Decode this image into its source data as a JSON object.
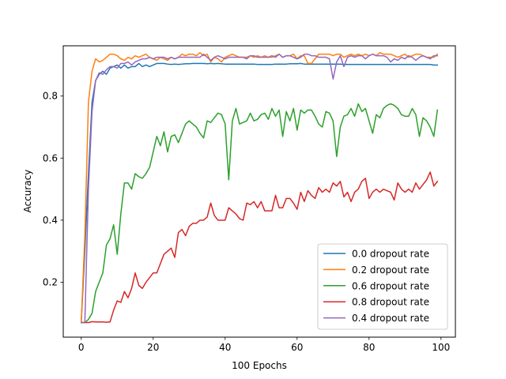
{
  "chart_data": {
    "type": "line",
    "title": "",
    "xlabel": "100 Epochs",
    "ylabel": "Accuracy",
    "xlim": [
      -5,
      104
    ],
    "ylim": [
      0.023,
      0.962
    ],
    "xticks": [
      0,
      20,
      40,
      60,
      80,
      100
    ],
    "yticks": [
      0.2,
      0.4,
      0.6,
      0.8
    ],
    "ytick_labels": [
      "0.2",
      "0.4",
      "0.6",
      "0.8"
    ],
    "grid": false,
    "legend": "lower-right",
    "series": [
      {
        "name": "0.0 dropout rate",
        "color": "#1f77b4",
        "values": [
          0.07,
          0.3,
          0.55,
          0.78,
          0.85,
          0.87,
          0.88,
          0.87,
          0.89,
          0.895,
          0.9,
          0.89,
          0.9,
          0.89,
          0.895,
          0.895,
          0.905,
          0.895,
          0.9,
          0.895,
          0.9,
          0.905,
          0.905,
          0.905,
          0.903,
          0.902,
          0.903,
          0.902,
          0.903,
          0.904,
          0.904,
          0.905,
          0.905,
          0.905,
          0.905,
          0.904,
          0.905,
          0.904,
          0.905,
          0.904,
          0.903,
          0.903,
          0.903,
          0.903,
          0.903,
          0.903,
          0.903,
          0.903,
          0.903,
          0.902,
          0.902,
          0.902,
          0.902,
          0.902,
          0.903,
          0.903,
          0.903,
          0.903,
          0.904,
          0.904,
          0.904,
          0.905,
          0.903,
          0.903,
          0.903,
          0.903,
          0.903,
          0.903,
          0.903,
          0.903,
          0.903,
          0.903,
          0.903,
          0.902,
          0.902,
          0.902,
          0.902,
          0.902,
          0.902,
          0.902,
          0.902,
          0.902,
          0.902,
          0.902,
          0.902,
          0.902,
          0.902,
          0.902,
          0.902,
          0.902,
          0.902,
          0.902,
          0.902,
          0.902,
          0.902,
          0.902,
          0.902,
          0.902,
          0.9,
          0.9
        ]
      },
      {
        "name": "0.2 dropout rate",
        "color": "#ff7f0e",
        "values": [
          0.07,
          0.35,
          0.78,
          0.88,
          0.92,
          0.91,
          0.915,
          0.925,
          0.935,
          0.935,
          0.93,
          0.92,
          0.915,
          0.925,
          0.92,
          0.93,
          0.925,
          0.93,
          0.935,
          0.925,
          0.92,
          0.915,
          0.925,
          0.92,
          0.915,
          0.925,
          0.92,
          0.925,
          0.935,
          0.93,
          0.935,
          0.935,
          0.93,
          0.94,
          0.93,
          0.935,
          0.91,
          0.925,
          0.92,
          0.91,
          0.925,
          0.93,
          0.935,
          0.93,
          0.925,
          0.925,
          0.925,
          0.93,
          0.925,
          0.93,
          0.925,
          0.93,
          0.925,
          0.925,
          0.93,
          0.935,
          0.925,
          0.93,
          0.93,
          0.935,
          0.92,
          0.93,
          0.93,
          0.905,
          0.905,
          0.92,
          0.935,
          0.935,
          0.935,
          0.935,
          0.93,
          0.935,
          0.935,
          0.925,
          0.93,
          0.935,
          0.93,
          0.935,
          0.93,
          0.935,
          0.93,
          0.935,
          0.93,
          0.94,
          0.935,
          0.935,
          0.935,
          0.93,
          0.925,
          0.93,
          0.935,
          0.925,
          0.93,
          0.935,
          0.935,
          0.93,
          0.925,
          0.925,
          0.925,
          0.935
        ]
      },
      {
        "name": "0.6 dropout rate",
        "color": "#2ca02c",
        "values": [
          0.07,
          0.07,
          0.08,
          0.1,
          0.17,
          0.2,
          0.23,
          0.32,
          0.34,
          0.385,
          0.29,
          0.42,
          0.52,
          0.52,
          0.5,
          0.55,
          0.54,
          0.535,
          0.55,
          0.57,
          0.62,
          0.67,
          0.64,
          0.685,
          0.62,
          0.67,
          0.675,
          0.65,
          0.68,
          0.71,
          0.72,
          0.71,
          0.7,
          0.68,
          0.665,
          0.72,
          0.715,
          0.73,
          0.745,
          0.74,
          0.71,
          0.53,
          0.72,
          0.76,
          0.71,
          0.715,
          0.72,
          0.745,
          0.72,
          0.725,
          0.74,
          0.745,
          0.725,
          0.76,
          0.735,
          0.755,
          0.67,
          0.75,
          0.72,
          0.76,
          0.69,
          0.755,
          0.745,
          0.755,
          0.755,
          0.735,
          0.71,
          0.7,
          0.75,
          0.745,
          0.72,
          0.605,
          0.7,
          0.735,
          0.74,
          0.76,
          0.735,
          0.775,
          0.75,
          0.76,
          0.72,
          0.68,
          0.74,
          0.73,
          0.76,
          0.77,
          0.775,
          0.77,
          0.76,
          0.74,
          0.735,
          0.735,
          0.76,
          0.74,
          0.67,
          0.73,
          0.72,
          0.7,
          0.67,
          0.755
        ]
      },
      {
        "name": "0.8 dropout rate",
        "color": "#d62728",
        "values": [
          0.07,
          0.07,
          0.07,
          0.073,
          0.072,
          0.072,
          0.072,
          0.071,
          0.072,
          0.11,
          0.14,
          0.135,
          0.17,
          0.15,
          0.18,
          0.23,
          0.19,
          0.18,
          0.2,
          0.215,
          0.23,
          0.23,
          0.26,
          0.29,
          0.3,
          0.31,
          0.28,
          0.36,
          0.37,
          0.35,
          0.38,
          0.39,
          0.39,
          0.4,
          0.4,
          0.41,
          0.455,
          0.415,
          0.4,
          0.4,
          0.4,
          0.44,
          0.43,
          0.42,
          0.405,
          0.4,
          0.455,
          0.45,
          0.46,
          0.44,
          0.46,
          0.43,
          0.43,
          0.43,
          0.48,
          0.44,
          0.44,
          0.47,
          0.47,
          0.455,
          0.435,
          0.49,
          0.46,
          0.495,
          0.48,
          0.47,
          0.505,
          0.49,
          0.5,
          0.49,
          0.52,
          0.51,
          0.525,
          0.475,
          0.49,
          0.46,
          0.49,
          0.5,
          0.525,
          0.535,
          0.47,
          0.49,
          0.5,
          0.49,
          0.5,
          0.495,
          0.49,
          0.465,
          0.52,
          0.5,
          0.49,
          0.5,
          0.49,
          0.52,
          0.5,
          0.515,
          0.53,
          0.555,
          0.51,
          0.525
        ]
      },
      {
        "name": "0.4 dropout rate",
        "color": "#9467bd",
        "values": [
          0.07,
          0.07,
          0.5,
          0.75,
          0.85,
          0.875,
          0.87,
          0.885,
          0.895,
          0.895,
          0.89,
          0.905,
          0.905,
          0.91,
          0.9,
          0.91,
          0.915,
          0.92,
          0.92,
          0.925,
          0.92,
          0.925,
          0.925,
          0.925,
          0.92,
          0.925,
          0.92,
          0.925,
          0.925,
          0.925,
          0.925,
          0.925,
          0.925,
          0.925,
          0.935,
          0.925,
          0.915,
          0.925,
          0.93,
          0.925,
          0.92,
          0.925,
          0.925,
          0.925,
          0.925,
          0.925,
          0.92,
          0.93,
          0.93,
          0.925,
          0.925,
          0.925,
          0.925,
          0.93,
          0.925,
          0.935,
          0.925,
          0.93,
          0.93,
          0.925,
          0.92,
          0.925,
          0.935,
          0.935,
          0.93,
          0.93,
          0.925,
          0.925,
          0.925,
          0.92,
          0.855,
          0.91,
          0.93,
          0.895,
          0.925,
          0.93,
          0.925,
          0.93,
          0.93,
          0.92,
          0.93,
          0.935,
          0.93,
          0.93,
          0.93,
          0.925,
          0.91,
          0.92,
          0.915,
          0.925,
          0.92,
          0.93,
          0.925,
          0.915,
          0.925,
          0.93,
          0.925,
          0.92,
          0.93,
          0.93
        ]
      }
    ]
  }
}
